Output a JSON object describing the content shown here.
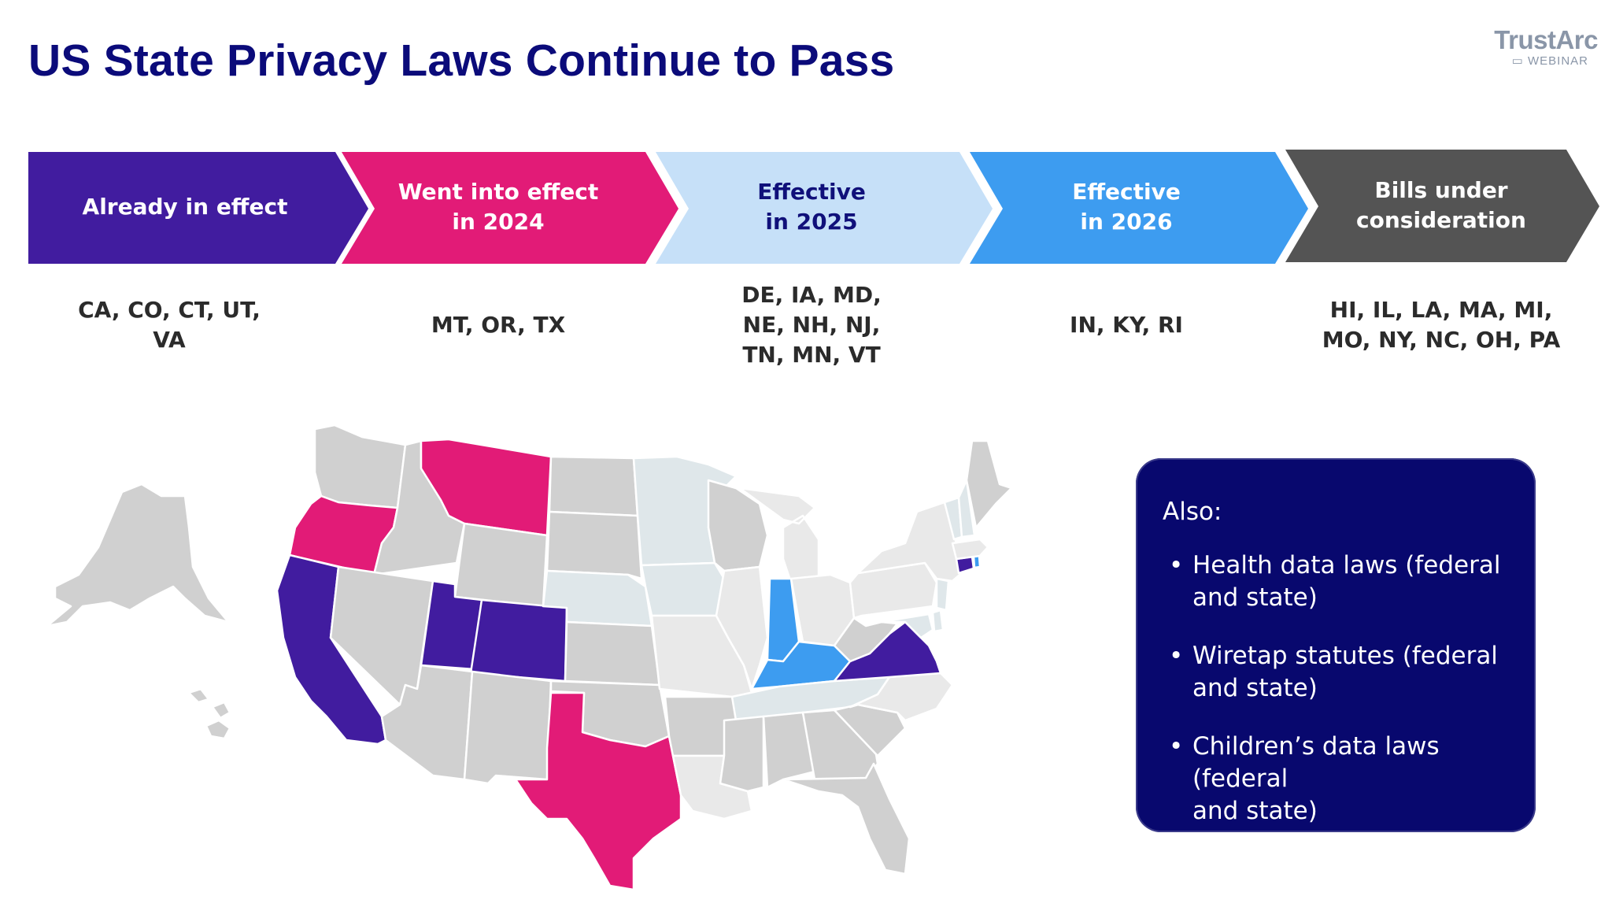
{
  "header": {
    "title": "US State Privacy Laws Continue to Pass"
  },
  "logo": {
    "name": "TrustArc",
    "tag": "WEBINAR",
    "icon": "screen-icon"
  },
  "colors": {
    "already": "#411c9f",
    "in2024": "#e21b77",
    "in2025": "#c6e0f8",
    "in2026": "#3d9cf0",
    "bills": "#545454",
    "no_law": "#d0d0d0",
    "considering_light": "#e9e9e9",
    "map_2025_fill": "#dfe7ea",
    "box_bg": "#08086e"
  },
  "timeline": [
    {
      "label_lines": [
        "Already in effect"
      ],
      "states_lines": [
        "CA, CO, CT, UT,",
        "VA"
      ]
    },
    {
      "label_lines": [
        "Went into effect",
        "in 2024"
      ],
      "states_lines": [
        "MT, OR, TX"
      ]
    },
    {
      "label_lines": [
        "Effective",
        "in 2025"
      ],
      "states_lines": [
        "DE, IA, MD,",
        "NE, NH, NJ,",
        "TN, MN, VT"
      ]
    },
    {
      "label_lines": [
        "Effective",
        "in 2026"
      ],
      "states_lines": [
        "IN, KY, RI"
      ]
    },
    {
      "label_lines": [
        "Bills under",
        "consideration"
      ],
      "states_lines": [
        "HI, IL, LA, MA, MI,",
        "MO, NY, NC, OH, PA"
      ]
    }
  ],
  "also": {
    "heading": "Also:",
    "items": [
      {
        "lines": [
          "Health data laws (federal",
          "and state)"
        ]
      },
      {
        "lines": [
          "Wiretap statutes (federal",
          "and state)"
        ]
      },
      {
        "lines": [
          "Children’s data laws (federal",
          "and state)"
        ]
      }
    ]
  }
}
